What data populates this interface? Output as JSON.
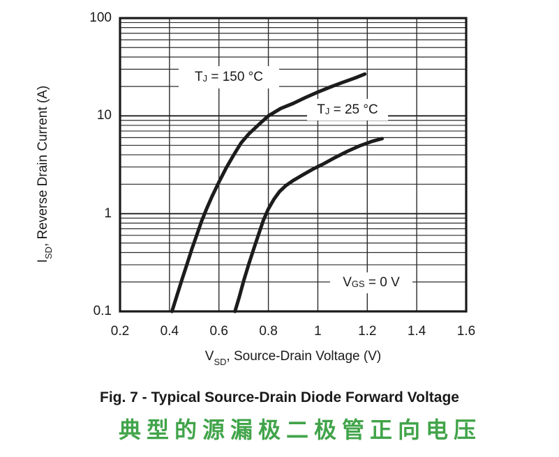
{
  "chart_data": {
    "type": "line",
    "title": "Fig. 7 - Typical Source-Drain Diode Forward Voltage",
    "title_cn": "典型的源漏极二极管正向电压",
    "xlabel": {
      "prefix": "V",
      "sub": "SD",
      "suffix": ", Source-Drain Voltage (V)"
    },
    "ylabel": {
      "prefix": "I",
      "sub": "SD",
      "suffix": ", Reverse Drain Current (A)"
    },
    "condition_label": {
      "prefix": "V",
      "sub": "GS",
      "suffix": " = 0 V"
    },
    "x_axis": {
      "scale": "linear",
      "min": 0.2,
      "max": 1.6,
      "ticks": [
        "0.2",
        "0.4",
        "0.6",
        "0.8",
        "1",
        "1.2",
        "1.4",
        "1.6"
      ],
      "tick_values": [
        0.2,
        0.4,
        0.6,
        0.8,
        1.0,
        1.2,
        1.4,
        1.6
      ],
      "grid": true
    },
    "y_axis": {
      "scale": "log",
      "min": 0.1,
      "max": 100,
      "ticks": [
        "100",
        "10",
        "1",
        "0.1"
      ],
      "tick_values": [
        100,
        10,
        1,
        0.1
      ],
      "minor_grid": true
    },
    "series": [
      {
        "name": "TJ = 150 C",
        "label": {
          "prefix": "T",
          "sub": "J",
          "suffix": " = 150 °C"
        },
        "points": [
          [
            0.41,
            0.1
          ],
          [
            0.43,
            0.145
          ],
          [
            0.45,
            0.21
          ],
          [
            0.47,
            0.3
          ],
          [
            0.49,
            0.43
          ],
          [
            0.51,
            0.6
          ],
          [
            0.53,
            0.84
          ],
          [
            0.55,
            1.12
          ],
          [
            0.572,
            1.5
          ],
          [
            0.6,
            2.1
          ],
          [
            0.63,
            2.95
          ],
          [
            0.66,
            4.0
          ],
          [
            0.69,
            5.3
          ],
          [
            0.72,
            6.5
          ],
          [
            0.76,
            8.1
          ],
          [
            0.8,
            10.0
          ],
          [
            0.85,
            11.9
          ],
          [
            0.9,
            13.4
          ],
          [
            0.95,
            15.4
          ],
          [
            1.0,
            17.5
          ],
          [
            1.05,
            19.7
          ],
          [
            1.1,
            22.0
          ],
          [
            1.15,
            24.4
          ],
          [
            1.19,
            26.8
          ]
        ]
      },
      {
        "name": "TJ = 25 C",
        "label": {
          "prefix": "T",
          "sub": "J",
          "suffix": " = 25 °C"
        },
        "points": [
          [
            0.665,
            0.1
          ],
          [
            0.682,
            0.14
          ],
          [
            0.7,
            0.205
          ],
          [
            0.72,
            0.3
          ],
          [
            0.74,
            0.43
          ],
          [
            0.76,
            0.61
          ],
          [
            0.78,
            0.86
          ],
          [
            0.8,
            1.12
          ],
          [
            0.822,
            1.4
          ],
          [
            0.845,
            1.68
          ],
          [
            0.87,
            1.93
          ],
          [
            0.9,
            2.18
          ],
          [
            0.94,
            2.5
          ],
          [
            0.98,
            2.85
          ],
          [
            1.02,
            3.2
          ],
          [
            1.07,
            3.75
          ],
          [
            1.12,
            4.35
          ],
          [
            1.17,
            4.95
          ],
          [
            1.22,
            5.5
          ],
          [
            1.26,
            5.85
          ]
        ]
      }
    ],
    "colors": {
      "curve": "#1c1c1c",
      "grid_minor": "#2b2b2b",
      "grid_major": "#1f1f1f",
      "border": "#1a1a1a",
      "caption_cn": "#41a44a"
    },
    "legend_position": "inline-labels",
    "grid": true
  }
}
